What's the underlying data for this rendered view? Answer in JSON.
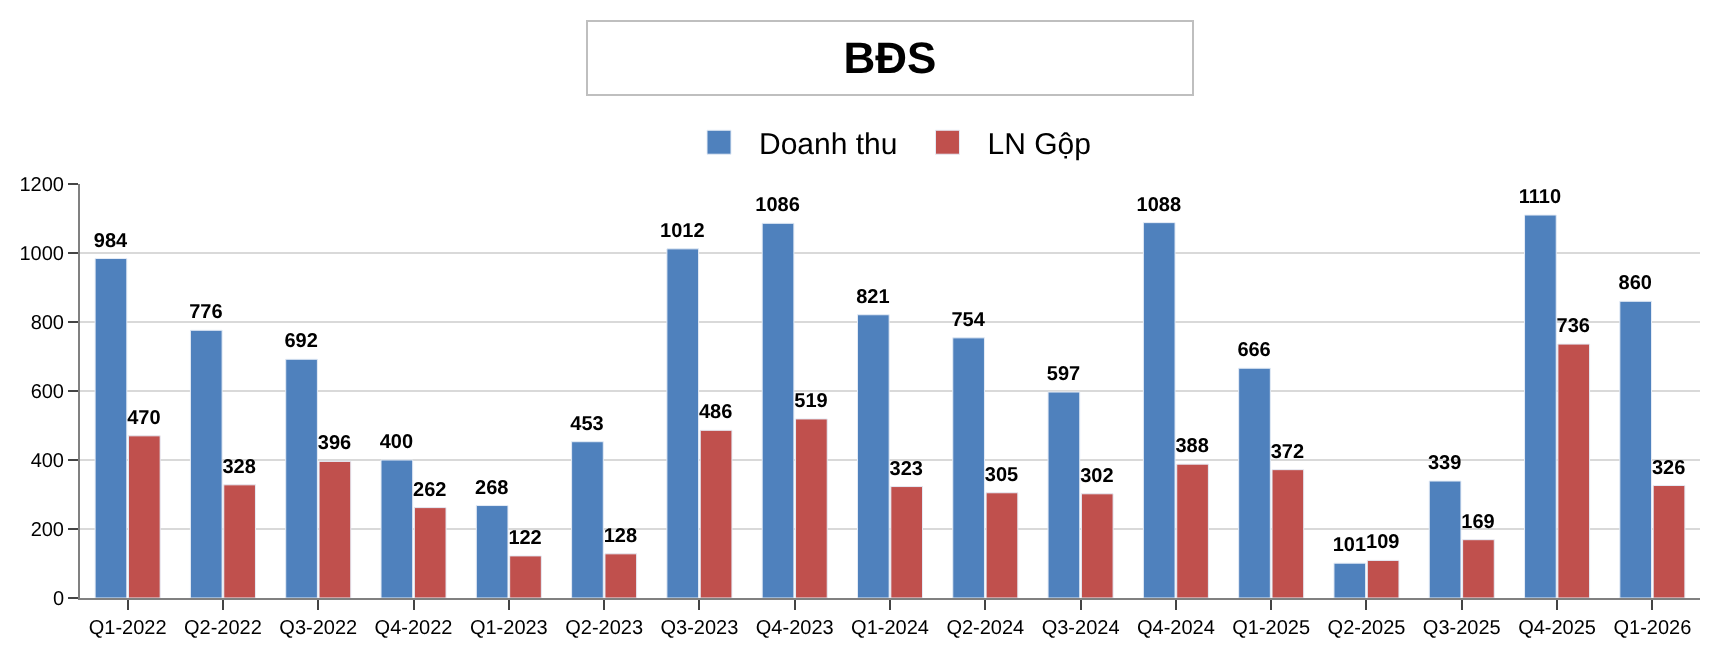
{
  "chart_data": {
    "type": "bar",
    "title": "BĐS",
    "categories": [
      "Q1-2022",
      "Q2-2022",
      "Q3-2022",
      "Q4-2022",
      "Q1-2023",
      "Q2-2023",
      "Q3-2023",
      "Q4-2023",
      "Q1-2024",
      "Q2-2024",
      "Q3-2024",
      "Q4-2024",
      "Q1-2025",
      "Q2-2025",
      "Q3-2025",
      "Q4-2025",
      "Q1-2026"
    ],
    "series": [
      {
        "name": "Doanh thu",
        "color": "#4f81bd",
        "values": [
          984,
          776,
          692,
          400,
          268,
          453,
          1012,
          1086,
          821,
          754,
          597,
          1088,
          666,
          101,
          339,
          1110,
          860
        ]
      },
      {
        "name": "LN Gộp",
        "color": "#c0504d",
        "values": [
          470,
          328,
          396,
          262,
          122,
          128,
          486,
          519,
          323,
          305,
          302,
          388,
          372,
          109,
          169,
          736,
          326
        ]
      }
    ],
    "ylim": [
      0,
      1200
    ],
    "yticks": [
      0,
      200,
      400,
      600,
      800,
      1000,
      1200
    ],
    "grid": "y",
    "legend": "top",
    "data_labels": true
  }
}
